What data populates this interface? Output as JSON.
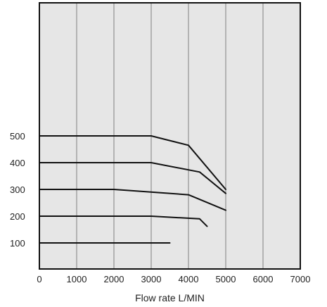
{
  "chart_data": {
    "type": "line",
    "title": "",
    "xlabel": "Flow rate L/MIN",
    "ylabel": "",
    "xlim": [
      0,
      7000
    ],
    "x_ticks": [
      0,
      1000,
      2000,
      3000,
      4000,
      5000,
      6000,
      7000
    ],
    "y_ticks": [
      100,
      200,
      300,
      400,
      500
    ],
    "grid": {
      "vertical": true,
      "horizontal": false
    },
    "legend": "none",
    "colors": {
      "plot_background": "#e6e6e6",
      "grid": "#808080",
      "frame": "#111111",
      "series": "#111111"
    },
    "series": [
      {
        "values": [
          [
            0,
            500
          ],
          [
            3000,
            500
          ],
          [
            4000,
            465
          ],
          [
            5000,
            300
          ]
        ]
      },
      {
        "values": [
          [
            0,
            400
          ],
          [
            3000,
            400
          ],
          [
            4300,
            365
          ],
          [
            5000,
            285
          ]
        ]
      },
      {
        "values": [
          [
            0,
            300
          ],
          [
            2000,
            300
          ],
          [
            4000,
            280
          ],
          [
            5000,
            222
          ]
        ]
      },
      {
        "values": [
          [
            0,
            200
          ],
          [
            3000,
            200
          ],
          [
            4300,
            190
          ],
          [
            4500,
            162
          ]
        ]
      },
      {
        "values": [
          [
            0,
            100
          ],
          [
            3500,
            100
          ]
        ]
      }
    ]
  }
}
